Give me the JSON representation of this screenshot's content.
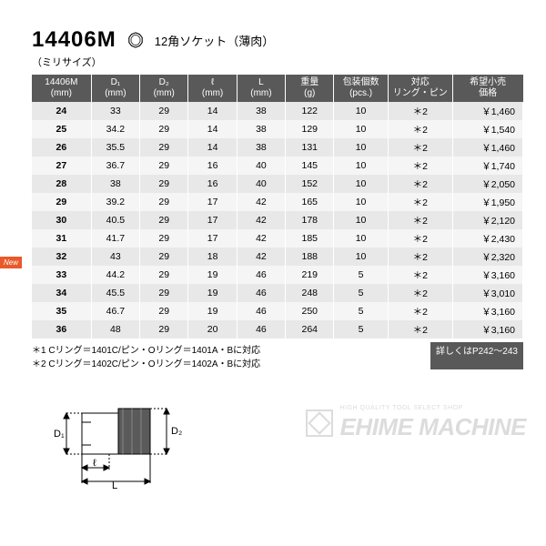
{
  "header": {
    "model": "14406M",
    "subtitle": "（ミリサイズ）",
    "socket_label": "12角ソケット（薄肉）"
  },
  "columns": [
    "14406M\n(mm)",
    "D₁\n(mm)",
    "D₂\n(mm)",
    "ℓ\n(mm)",
    "L\n(mm)",
    "重量\n(g)",
    "包装個数\n(pcs.)",
    "対応\nリング・ピン",
    "希望小売\n価格"
  ],
  "rows": [
    [
      "24",
      "33",
      "29",
      "14",
      "38",
      "122",
      "10",
      "＊2",
      "￥1,460"
    ],
    [
      "25",
      "34.2",
      "29",
      "14",
      "38",
      "129",
      "10",
      "＊2",
      "￥1,540"
    ],
    [
      "26",
      "35.5",
      "29",
      "14",
      "38",
      "131",
      "10",
      "＊2",
      "￥1,460"
    ],
    [
      "27",
      "36.7",
      "29",
      "16",
      "40",
      "145",
      "10",
      "＊2",
      "￥1,740"
    ],
    [
      "28",
      "38",
      "29",
      "16",
      "40",
      "152",
      "10",
      "＊2",
      "￥2,050"
    ],
    [
      "29",
      "39.2",
      "29",
      "17",
      "42",
      "165",
      "10",
      "＊2",
      "￥1,950"
    ],
    [
      "30",
      "40.5",
      "29",
      "17",
      "42",
      "178",
      "10",
      "＊2",
      "￥2,120"
    ],
    [
      "31",
      "41.7",
      "29",
      "17",
      "42",
      "185",
      "10",
      "＊2",
      "￥2,430"
    ],
    [
      "32",
      "43",
      "29",
      "18",
      "42",
      "188",
      "10",
      "＊2",
      "￥2,320"
    ],
    [
      "33",
      "44.2",
      "29",
      "19",
      "46",
      "219",
      "5",
      "＊2",
      "￥3,160"
    ],
    [
      "34",
      "45.5",
      "29",
      "19",
      "46",
      "248",
      "5",
      "＊2",
      "￥3,010"
    ],
    [
      "35",
      "46.7",
      "29",
      "19",
      "46",
      "250",
      "5",
      "＊2",
      "￥3,160"
    ],
    [
      "36",
      "48",
      "29",
      "20",
      "46",
      "264",
      "5",
      "＊2",
      "￥3,160"
    ]
  ],
  "notes": {
    "line1": "＊1 Cリング＝1401C/ピン・Oリング＝1401A・Bに対応",
    "line2": "＊2 Cリング＝1402C/ピン・Oリング＝1402A・Bに対応",
    "detail": "詳しくはP242～243"
  },
  "badge": {
    "text": "New"
  },
  "watermark": {
    "small": "HIGH QUALITY TOOL SELECT SHOP",
    "main": "EHIME MACHINE"
  },
  "colors": {
    "header_bg": "#595959",
    "row_odd": "#e8e8e8",
    "row_even": "#f5f5f5",
    "badge": "#e85a2a",
    "watermark": "#dcdcdc"
  },
  "diagram": {
    "labels": [
      "D₁",
      "D₂",
      "ℓ",
      "L"
    ],
    "stroke": "#000000",
    "fill": "#555555"
  }
}
